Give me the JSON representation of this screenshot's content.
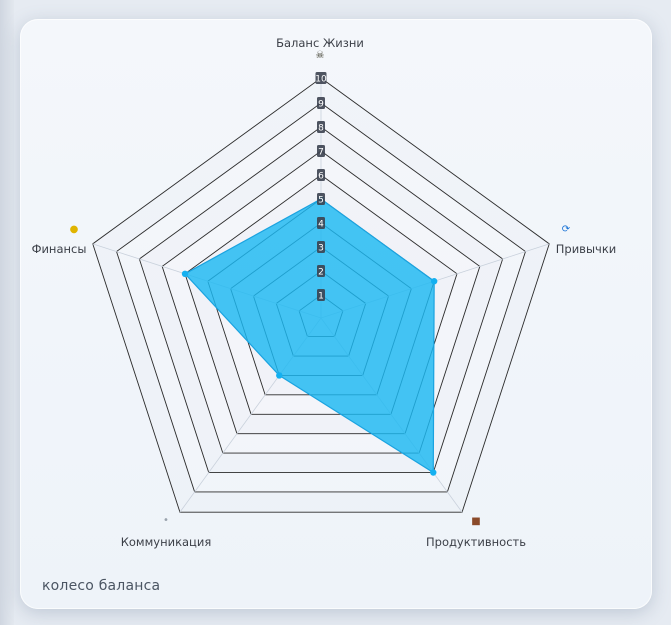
{
  "chart_data": {
    "type": "radar",
    "caption": "колесо баланса",
    "scale": {
      "min": 0,
      "max": 10,
      "ticks": [
        1,
        2,
        3,
        4,
        5,
        6,
        7,
        8,
        9,
        10
      ]
    },
    "axes": [
      {
        "label": "Баланс Жизни",
        "icon": "skull-crossbones-icon"
      },
      {
        "label": "Привычки",
        "icon": "refresh-square-icon"
      },
      {
        "label": "Продуктивность",
        "icon": "briefcase-icon"
      },
      {
        "label": "Коммуникация",
        "icon": "speech-bubble-icon"
      },
      {
        "label": "Финансы",
        "icon": "money-bag-icon"
      }
    ],
    "series": [
      {
        "values": [
          5,
          5,
          8,
          3,
          6
        ]
      }
    ],
    "colors": {
      "fill": "#1cb8f2",
      "stroke": "#1aa3e0",
      "point": "#14b0f0",
      "grid": "#2b2b2b",
      "tick_bg": "#3c4350",
      "tick_text": "#ffffff"
    }
  }
}
